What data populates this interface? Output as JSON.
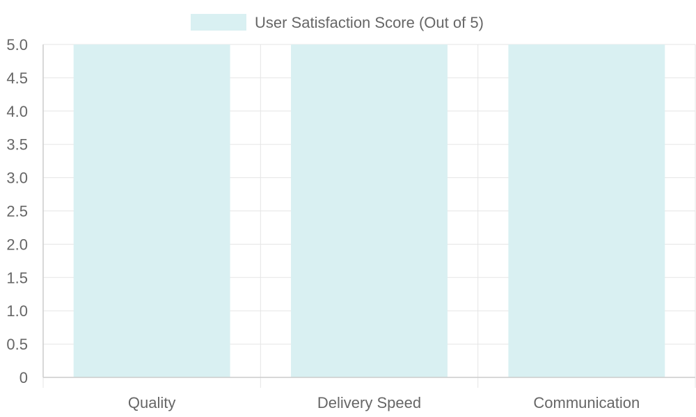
{
  "chart_data": {
    "type": "bar",
    "categories": [
      "Quality",
      "Delivery Speed",
      "Communication"
    ],
    "series": [
      {
        "name": "User Satisfaction Score (Out of 5)",
        "values": [
          5,
          5,
          5
        ]
      }
    ],
    "title": "",
    "xlabel": "",
    "ylabel": "",
    "ylim": [
      0,
      5
    ],
    "yticks": [
      "0",
      "0.5",
      "1.0",
      "1.5",
      "2.0",
      "2.5",
      "3.0",
      "3.5",
      "4.0",
      "4.5",
      "5.0"
    ],
    "grid": true,
    "legend_position": "top-center",
    "colors": {
      "bar_fill": "#d9f0f2",
      "grid": "#e5e5e5",
      "axis": "#cccccc",
      "text": "#666666"
    }
  }
}
